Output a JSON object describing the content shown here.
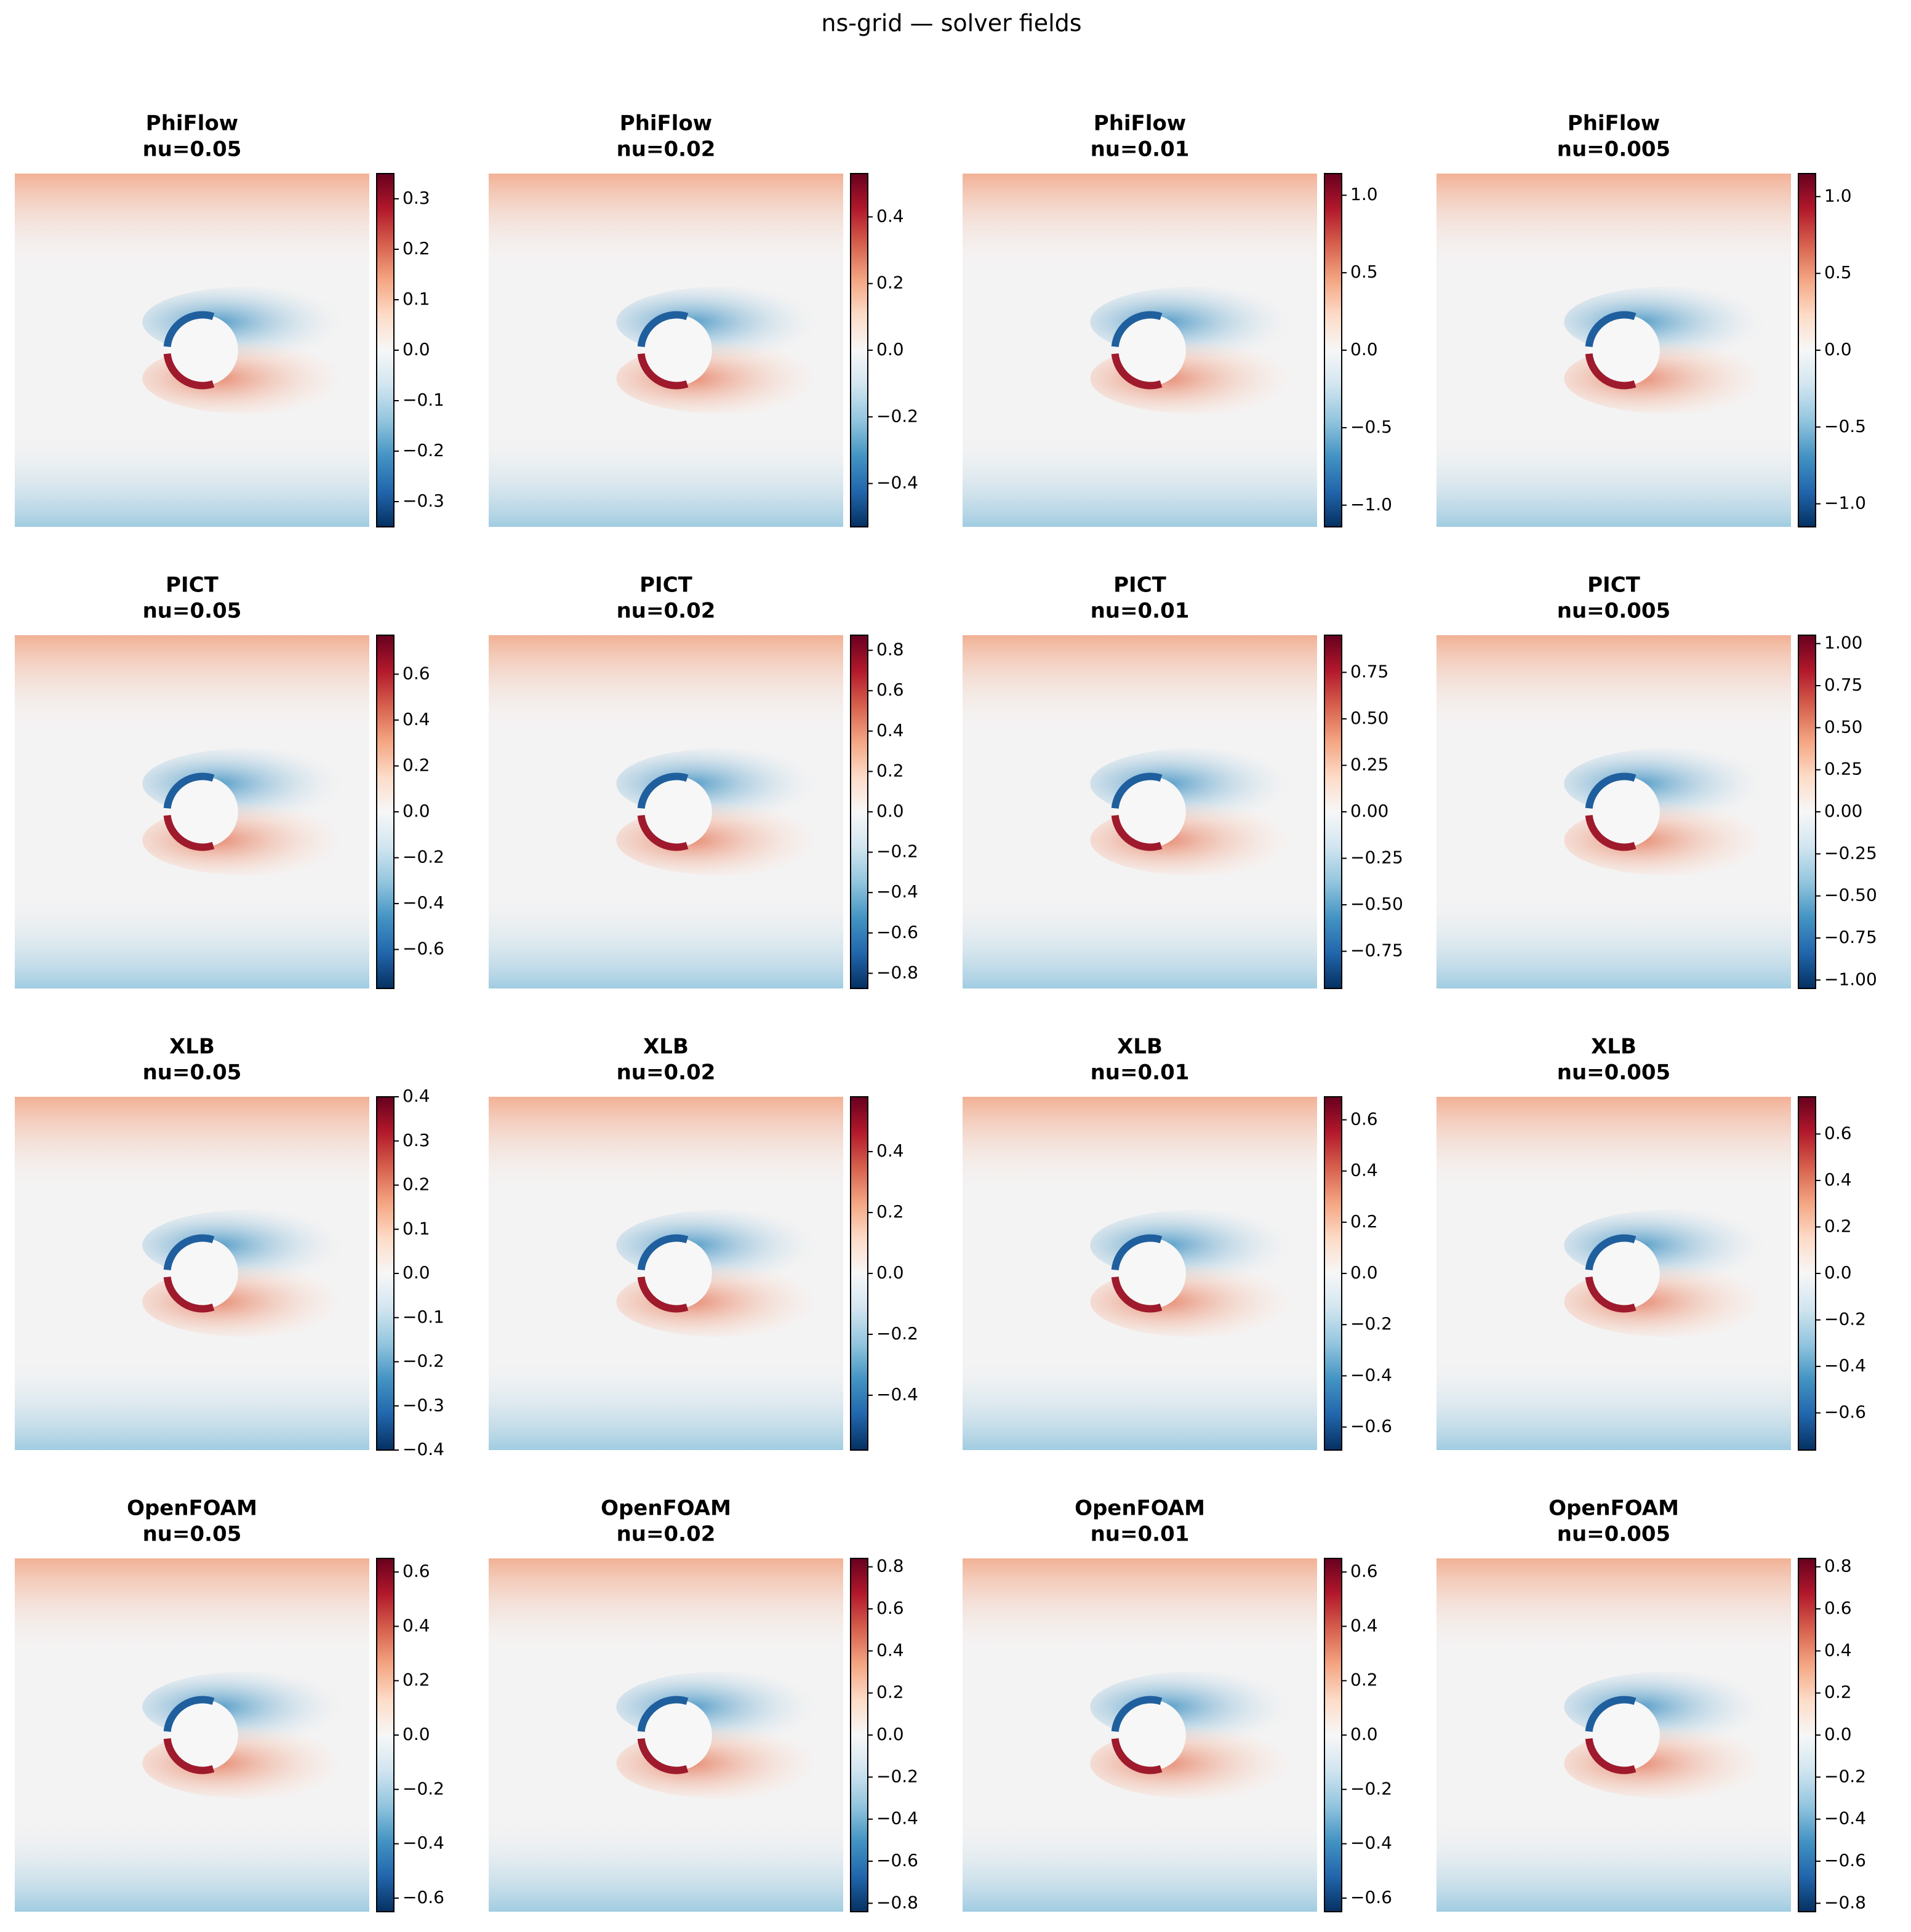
{
  "title": "ns-grid — solver fields",
  "chart_data": [
    {
      "type": "heatmap",
      "title": "PhiFlow",
      "subtitle": "nu=0.05",
      "colormap": "RdBu_r",
      "clim": [
        -0.35,
        0.35
      ],
      "cticks": [
        {
          "value": -0.3,
          "label": "−0.3"
        },
        {
          "value": -0.2,
          "label": "−0.2"
        },
        {
          "value": -0.1,
          "label": "−0.1"
        },
        {
          "value": 0,
          "label": "0.0"
        },
        0.1,
        0.2,
        0.3
      ]
    },
    {
      "type": "heatmap",
      "title": "PhiFlow",
      "subtitle": "nu=0.02",
      "colormap": "RdBu_r",
      "clim": [
        -0.53,
        0.53
      ],
      "cticks": [
        {
          "value": -0.4,
          "label": "−0.4"
        },
        {
          "value": -0.2,
          "label": "−0.2"
        },
        {
          "value": 0,
          "label": "0.0"
        },
        0.2,
        0.4
      ]
    },
    {
      "type": "heatmap",
      "title": "PhiFlow",
      "subtitle": "nu=0.01",
      "colormap": "RdBu_r",
      "clim": [
        -1.14,
        1.14
      ],
      "cticks": [
        {
          "value": -1,
          "label": "−1.0"
        },
        {
          "value": -0.5,
          "label": "−0.5"
        },
        {
          "value": 0,
          "label": "0.0"
        },
        0.5,
        {
          "value": 1,
          "label": "1.0"
        }
      ]
    },
    {
      "type": "heatmap",
      "title": "PhiFlow",
      "subtitle": "nu=0.005",
      "colormap": "RdBu_r",
      "clim": [
        -1.15,
        1.15
      ],
      "cticks": [
        {
          "value": -1,
          "label": "−1.0"
        },
        {
          "value": -0.5,
          "label": "−0.5"
        },
        {
          "value": 0,
          "label": "0.0"
        },
        0.5,
        {
          "value": 1,
          "label": "1.0"
        }
      ]
    },
    {
      "type": "heatmap",
      "title": "PICT",
      "subtitle": "nu=0.05",
      "colormap": "RdBu_r",
      "clim": [
        -0.77,
        0.77
      ],
      "cticks": [
        {
          "value": -0.6,
          "label": "−0.6"
        },
        {
          "value": -0.4,
          "label": "−0.4"
        },
        {
          "value": -0.2,
          "label": "−0.2"
        },
        {
          "value": 0,
          "label": "0.0"
        },
        0.2,
        0.4,
        0.6
      ]
    },
    {
      "type": "heatmap",
      "title": "PICT",
      "subtitle": "nu=0.02",
      "colormap": "RdBu_r",
      "clim": [
        -0.875,
        0.875
      ],
      "cticks": [
        {
          "value": -0.8,
          "label": "−0.8"
        },
        {
          "value": -0.6,
          "label": "−0.6"
        },
        {
          "value": -0.4,
          "label": "−0.4"
        },
        {
          "value": -0.2,
          "label": "−0.2"
        },
        {
          "value": 0,
          "label": "0.0"
        },
        0.2,
        0.4,
        0.6,
        0.8
      ]
    },
    {
      "type": "heatmap",
      "title": "PICT",
      "subtitle": "nu=0.01",
      "colormap": "RdBu_r",
      "clim": [
        -0.95,
        0.95
      ],
      "cticks": [
        {
          "value": -0.75,
          "label": "−0.75"
        },
        {
          "value": -0.5,
          "label": "−0.50"
        },
        {
          "value": -0.25,
          "label": "−0.25"
        },
        {
          "value": 0,
          "label": "0.00"
        },
        0.25,
        {
          "value": 0.5,
          "label": "0.50"
        },
        0.75
      ]
    },
    {
      "type": "heatmap",
      "title": "PICT",
      "subtitle": "nu=0.005",
      "colormap": "RdBu_r",
      "clim": [
        -1.05,
        1.05
      ],
      "cticks": [
        {
          "value": -1,
          "label": "−1.00"
        },
        {
          "value": -0.75,
          "label": "−0.75"
        },
        {
          "value": -0.5,
          "label": "−0.50"
        },
        {
          "value": -0.25,
          "label": "−0.25"
        },
        {
          "value": 0,
          "label": "0.00"
        },
        0.25,
        {
          "value": 0.5,
          "label": "0.50"
        },
        0.75,
        {
          "value": 1,
          "label": "1.00"
        }
      ]
    },
    {
      "type": "heatmap",
      "title": "XLB",
      "subtitle": "nu=0.05",
      "colormap": "RdBu_r",
      "clim": [
        -0.4,
        0.4
      ],
      "cticks": [
        {
          "value": -0.4,
          "label": "−0.4"
        },
        {
          "value": -0.3,
          "label": "−0.3"
        },
        {
          "value": -0.2,
          "label": "−0.2"
        },
        {
          "value": -0.1,
          "label": "−0.1"
        },
        {
          "value": 0,
          "label": "0.0"
        },
        0.1,
        0.2,
        0.3,
        0.4
      ]
    },
    {
      "type": "heatmap",
      "title": "XLB",
      "subtitle": "nu=0.02",
      "colormap": "RdBu_r",
      "clim": [
        -0.58,
        0.58
      ],
      "cticks": [
        {
          "value": -0.4,
          "label": "−0.4"
        },
        {
          "value": -0.2,
          "label": "−0.2"
        },
        {
          "value": 0,
          "label": "0.0"
        },
        0.2,
        0.4
      ]
    },
    {
      "type": "heatmap",
      "title": "XLB",
      "subtitle": "nu=0.01",
      "colormap": "RdBu_r",
      "clim": [
        -0.69,
        0.69
      ],
      "cticks": [
        {
          "value": -0.6,
          "label": "−0.6"
        },
        {
          "value": -0.4,
          "label": "−0.4"
        },
        {
          "value": -0.2,
          "label": "−0.2"
        },
        {
          "value": 0,
          "label": "0.0"
        },
        0.2,
        0.4,
        0.6
      ]
    },
    {
      "type": "heatmap",
      "title": "XLB",
      "subtitle": "nu=0.005",
      "colormap": "RdBu_r",
      "clim": [
        -0.76,
        0.76
      ],
      "cticks": [
        {
          "value": -0.6,
          "label": "−0.6"
        },
        {
          "value": -0.4,
          "label": "−0.4"
        },
        {
          "value": -0.2,
          "label": "−0.2"
        },
        {
          "value": 0,
          "label": "0.0"
        },
        0.2,
        0.4,
        0.6
      ]
    },
    {
      "type": "heatmap",
      "title": "OpenFOAM",
      "subtitle": "nu=0.05",
      "colormap": "RdBu_r",
      "clim": [
        -0.65,
        0.65
      ],
      "cticks": [
        {
          "value": -0.6,
          "label": "−0.6"
        },
        {
          "value": -0.4,
          "label": "−0.4"
        },
        {
          "value": -0.2,
          "label": "−0.2"
        },
        {
          "value": 0,
          "label": "0.0"
        },
        0.2,
        0.4,
        0.6
      ]
    },
    {
      "type": "heatmap",
      "title": "OpenFOAM",
      "subtitle": "nu=0.02",
      "colormap": "RdBu_r",
      "clim": [
        -0.84,
        0.84
      ],
      "cticks": [
        {
          "value": -0.8,
          "label": "−0.8"
        },
        {
          "value": -0.6,
          "label": "−0.6"
        },
        {
          "value": -0.4,
          "label": "−0.4"
        },
        {
          "value": -0.2,
          "label": "−0.2"
        },
        {
          "value": 0,
          "label": "0.0"
        },
        0.2,
        0.4,
        0.6,
        0.8
      ]
    },
    {
      "type": "heatmap",
      "title": "OpenFOAM",
      "subtitle": "nu=0.01",
      "colormap": "RdBu_r",
      "clim": [
        -0.65,
        0.65
      ],
      "cticks": [
        {
          "value": -0.6,
          "label": "−0.6"
        },
        {
          "value": -0.4,
          "label": "−0.4"
        },
        {
          "value": -0.2,
          "label": "−0.2"
        },
        {
          "value": 0,
          "label": "0.0"
        },
        0.2,
        0.4,
        0.6
      ]
    },
    {
      "type": "heatmap",
      "title": "OpenFOAM",
      "subtitle": "nu=0.005",
      "colormap": "RdBu_r",
      "clim": [
        -0.84,
        0.84
      ],
      "cticks": [
        {
          "value": -0.8,
          "label": "−0.8"
        },
        {
          "value": -0.6,
          "label": "−0.6"
        },
        {
          "value": -0.4,
          "label": "−0.4"
        },
        {
          "value": -0.2,
          "label": "−0.2"
        },
        {
          "value": 0,
          "label": "0.0"
        },
        0.2,
        0.4,
        0.6,
        0.8
      ]
    }
  ]
}
